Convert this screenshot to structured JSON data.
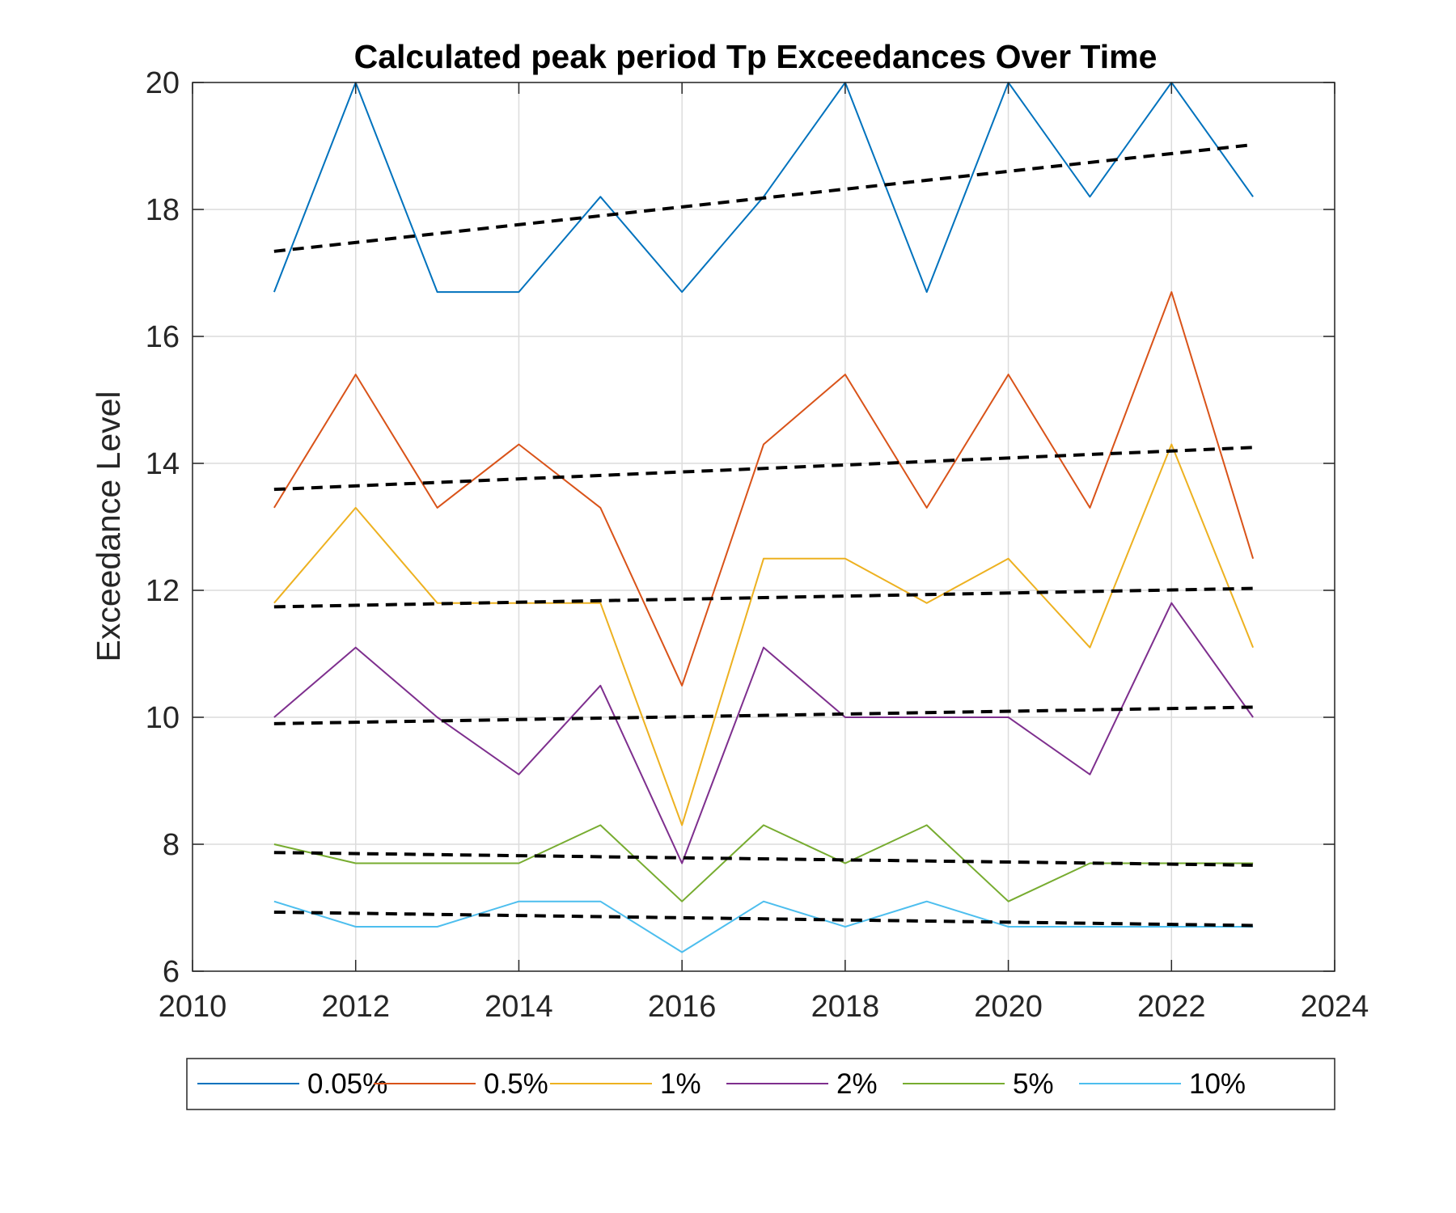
{
  "chart_data": {
    "type": "line",
    "title": "Calculated peak period Tp Exceedances Over Time",
    "xlabel": "",
    "ylabel": "Exceedance Level",
    "xlim": [
      2010,
      2024
    ],
    "ylim": [
      6,
      20
    ],
    "x_ticks": [
      "2010",
      "2012",
      "2014",
      "2016",
      "2018",
      "2020",
      "2022",
      "2024"
    ],
    "y_ticks": [
      "6",
      "8",
      "10",
      "12",
      "14",
      "16",
      "18",
      "20"
    ],
    "grid": true,
    "legend_position": "bottom",
    "x": [
      2011,
      2012,
      2013,
      2014,
      2015,
      2016,
      2017,
      2018,
      2019,
      2020,
      2021,
      2022,
      2023
    ],
    "series": [
      {
        "name": "0.05%",
        "color": "#0072BD",
        "values": [
          16.7,
          20.0,
          16.7,
          16.7,
          18.2,
          16.7,
          18.2,
          20.0,
          16.7,
          20.0,
          18.2,
          20.0,
          18.2
        ],
        "trend": [
          17.34,
          19.02
        ]
      },
      {
        "name": "0.5%",
        "color": "#D95319",
        "values": [
          13.3,
          15.4,
          13.3,
          14.3,
          13.3,
          10.5,
          14.3,
          15.4,
          13.3,
          15.4,
          13.3,
          16.7,
          12.5
        ],
        "trend": [
          13.59,
          14.25
        ]
      },
      {
        "name": "1%",
        "color": "#EDB120",
        "values": [
          11.8,
          13.3,
          11.8,
          11.8,
          11.8,
          8.3,
          12.5,
          12.5,
          11.8,
          12.5,
          11.1,
          14.3,
          11.1
        ],
        "trend": [
          11.74,
          12.03
        ]
      },
      {
        "name": "2%",
        "color": "#7E2F8E",
        "values": [
          10.0,
          11.1,
          10.0,
          9.1,
          10.5,
          7.7,
          11.1,
          10.0,
          10.0,
          10.0,
          9.1,
          11.8,
          10.0
        ],
        "trend": [
          9.9,
          10.16
        ]
      },
      {
        "name": "5%",
        "color": "#77AC30",
        "values": [
          8.0,
          7.7,
          7.7,
          7.7,
          8.3,
          7.1,
          8.3,
          7.7,
          8.3,
          7.1,
          7.7,
          7.7,
          7.7
        ],
        "trend": [
          7.87,
          7.67
        ]
      },
      {
        "name": "10%",
        "color": "#4DBEEE",
        "values": [
          7.1,
          6.7,
          6.7,
          7.1,
          7.1,
          6.3,
          7.1,
          6.7,
          7.1,
          6.7,
          6.7,
          6.7,
          6.7
        ],
        "trend": [
          6.93,
          6.72
        ]
      }
    ]
  }
}
